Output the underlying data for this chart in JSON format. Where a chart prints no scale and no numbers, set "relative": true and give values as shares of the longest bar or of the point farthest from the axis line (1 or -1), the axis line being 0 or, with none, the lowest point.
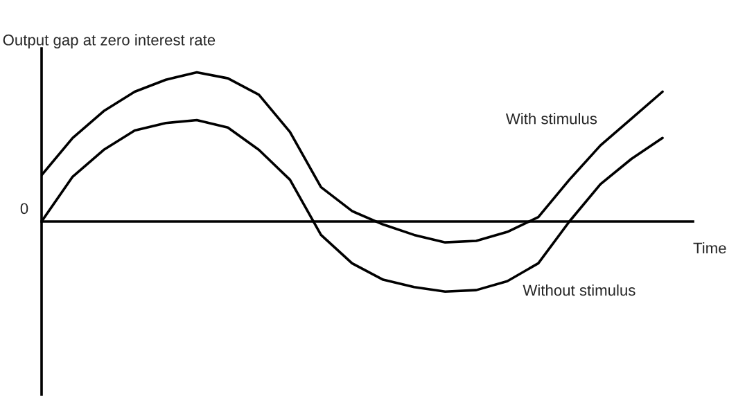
{
  "chart_data": {
    "type": "line",
    "relative": true,
    "ylabel": "Output gap at zero interest rate",
    "xlabel": "Time",
    "annotations": [
      "0"
    ],
    "categories": [
      null,
      null,
      null,
      null,
      null,
      null,
      null,
      null,
      null,
      null,
      null,
      null,
      null,
      null,
      null,
      null,
      null,
      null,
      null,
      null,
      null
    ],
    "series": [
      {
        "name": "With stimulus",
        "color": "#000000",
        "values": [
          0.31,
          0.56,
          0.74,
          0.87,
          0.95,
          1.0,
          0.96,
          0.85,
          0.6,
          0.23,
          0.07,
          -0.02,
          -0.09,
          -0.14,
          -0.13,
          -0.07,
          0.03,
          0.28,
          0.51,
          0.69,
          0.87
        ]
      },
      {
        "name": "Without stimulus",
        "color": "#000000",
        "values": [
          0,
          0.3,
          0.48,
          0.61,
          0.66,
          0.68,
          0.63,
          0.48,
          0.28,
          -0.09,
          -0.28,
          -0.39,
          -0.44,
          -0.47,
          -0.46,
          -0.4,
          -0.28,
          0,
          0.25,
          0.42,
          0.56
        ]
      }
    ],
    "marker": "none",
    "line_style": "solid"
  }
}
